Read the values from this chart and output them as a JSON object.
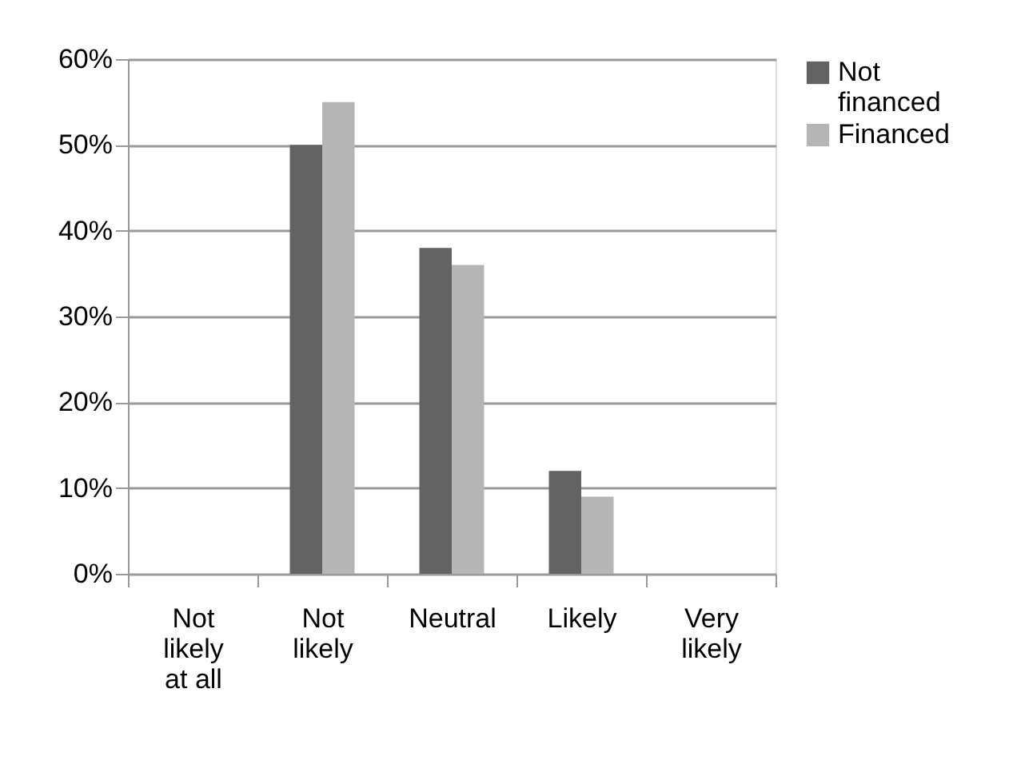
{
  "chart_data": {
    "type": "bar",
    "categories": [
      "Not likely at all",
      "Not likely",
      "Neutral",
      "Likely",
      "Very likely"
    ],
    "series": [
      {
        "name": "Not financed",
        "color": "#636363",
        "values": [
          0,
          50,
          38,
          12,
          0
        ]
      },
      {
        "name": "Financed",
        "color": "#b5b5b5",
        "values": [
          0,
          55,
          36,
          9,
          0
        ]
      }
    ],
    "ylim": [
      0,
      60
    ],
    "yticks": [
      {
        "value": 0,
        "label": "0%"
      },
      {
        "value": 10,
        "label": "10%"
      },
      {
        "value": 20,
        "label": "20%"
      },
      {
        "value": 30,
        "label": "30%"
      },
      {
        "value": 40,
        "label": "40%"
      },
      {
        "value": 50,
        "label": "50%"
      },
      {
        "value": 60,
        "label": "60%"
      }
    ],
    "grid": "y",
    "legend": "top right"
  }
}
